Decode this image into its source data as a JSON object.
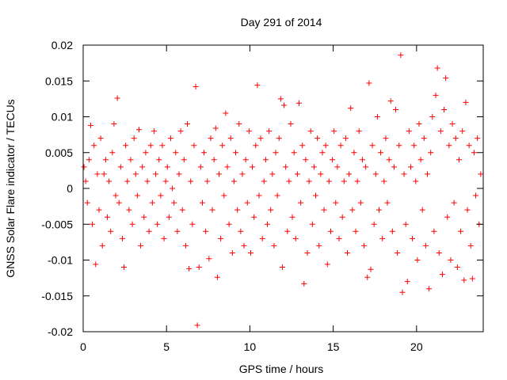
{
  "chart_data": {
    "type": "scatter",
    "title": "Day 291 of 2014",
    "xlabel": "GPS time / hours",
    "ylabel": "GNSS Solar Flare indicator / TECUs",
    "xlim": [
      0,
      24
    ],
    "ylim": [
      -0.02,
      0.02
    ],
    "xticks": [
      0,
      5,
      10,
      15,
      20
    ],
    "xtick_labels": [
      "0",
      "5",
      "10",
      "15",
      "20"
    ],
    "yticks": [
      -0.02,
      -0.015,
      -0.01,
      -0.005,
      0,
      0.005,
      0.01,
      0.015,
      0.02
    ],
    "ytick_labels": [
      "-0.02",
      "-0.015",
      "-0.01",
      "-0.005",
      "0",
      "0.005",
      "0.01",
      "0.015",
      "0.02"
    ],
    "grid": false,
    "legend": "none",
    "marker": "plus",
    "marker_color": "#ff0000",
    "series": [
      {
        "points": [
          [
            0.05,
            0.003
          ],
          [
            0.15,
            0.001
          ],
          [
            0.25,
            -0.002
          ],
          [
            0.35,
            0.004
          ],
          [
            0.45,
            0.0088
          ],
          [
            0.55,
            -0.005
          ],
          [
            0.65,
            0.006
          ],
          [
            0.75,
            -0.0106
          ],
          [
            0.85,
            0.002
          ],
          [
            0.95,
            -0.003
          ],
          [
            1.05,
            0.007
          ],
          [
            1.15,
            -0.008
          ],
          [
            1.25,
            0.002
          ],
          [
            1.35,
            0.004
          ],
          [
            1.45,
            -0.004
          ],
          [
            1.55,
            0.001
          ],
          [
            1.65,
            -0.006
          ],
          [
            1.75,
            0.005
          ],
          [
            1.85,
            0.009
          ],
          [
            1.95,
            -0.001
          ],
          [
            2.05,
            0.0126
          ],
          [
            2.15,
            -0.002
          ],
          [
            2.25,
            0.003
          ],
          [
            2.35,
            -0.007
          ],
          [
            2.45,
            -0.011
          ],
          [
            2.55,
            0.006
          ],
          [
            2.65,
            0.001
          ],
          [
            2.75,
            -0.003
          ],
          [
            2.85,
            0.004
          ],
          [
            2.95,
            -0.005
          ],
          [
            3.05,
            0.007
          ],
          [
            3.15,
            0.002
          ],
          [
            3.25,
            -0.001
          ],
          [
            3.35,
            0.0082
          ],
          [
            3.45,
            -0.008
          ],
          [
            3.55,
            0.003
          ],
          [
            3.65,
            -0.004
          ],
          [
            3.75,
            0.005
          ],
          [
            3.85,
            0.001
          ],
          [
            3.95,
            -0.006
          ],
          [
            4.05,
            0.006
          ],
          [
            4.15,
            -0.002
          ],
          [
            4.25,
            0.008
          ],
          [
            4.35,
            0.002
          ],
          [
            4.45,
            -0.005
          ],
          [
            4.55,
            0.004
          ],
          [
            4.65,
            -0.001
          ],
          [
            4.75,
            0.006
          ],
          [
            4.85,
            -0.007
          ],
          [
            4.95,
            0.001
          ],
          [
            5.05,
            0.003
          ],
          [
            5.15,
            -0.004
          ],
          [
            5.25,
            0.007
          ],
          [
            5.35,
            0.0
          ],
          [
            5.45,
            -0.002
          ],
          [
            5.55,
            0.005
          ],
          [
            5.65,
            -0.006
          ],
          [
            5.75,
            0.002
          ],
          [
            5.85,
            0.008
          ],
          [
            5.95,
            -0.003
          ],
          [
            6.05,
            0.004
          ],
          [
            6.15,
            -0.008
          ],
          [
            6.25,
            0.009
          ],
          [
            6.35,
            -0.0112
          ],
          [
            6.45,
            0.001
          ],
          [
            6.55,
            -0.005
          ],
          [
            6.65,
            0.006
          ],
          [
            6.75,
            0.0142
          ],
          [
            6.85,
            -0.0191
          ],
          [
            6.95,
            -0.011
          ],
          [
            7.05,
            0.003
          ],
          [
            7.15,
            -0.002
          ],
          [
            7.25,
            0.005
          ],
          [
            7.35,
            -0.006
          ],
          [
            7.45,
            0.001
          ],
          [
            7.55,
            -0.0098
          ],
          [
            7.65,
            0.007
          ],
          [
            7.75,
            -0.003
          ],
          [
            7.85,
            0.004
          ],
          [
            7.95,
            0.0084
          ],
          [
            8.05,
            -0.0124
          ],
          [
            8.15,
            0.002
          ],
          [
            8.25,
            -0.007
          ],
          [
            8.35,
            0.006
          ],
          [
            8.45,
            -0.001
          ],
          [
            8.55,
            0.0105
          ],
          [
            8.65,
            0.003
          ],
          [
            8.75,
            -0.005
          ],
          [
            8.85,
            0.007
          ],
          [
            8.95,
            -0.009
          ],
          [
            9.05,
            0.001
          ],
          [
            9.15,
            0.005
          ],
          [
            9.25,
            -0.003
          ],
          [
            9.35,
            0.009
          ],
          [
            9.45,
            -0.006
          ],
          [
            9.55,
            0.002
          ],
          [
            9.65,
            -0.008
          ],
          [
            9.75,
            0.004
          ],
          [
            9.85,
            -0.002
          ],
          [
            9.95,
            0.008
          ],
          [
            10.05,
            -0.009
          ],
          [
            10.15,
            0.003
          ],
          [
            10.25,
            -0.004
          ],
          [
            10.35,
            0.006
          ],
          [
            10.45,
            0.0144
          ],
          [
            10.55,
            -0.001
          ],
          [
            10.65,
            0.007
          ],
          [
            10.75,
            -0.007
          ],
          [
            10.85,
            0.001
          ],
          [
            10.95,
            0.004
          ],
          [
            11.05,
            -0.005
          ],
          [
            11.15,
            0.008
          ],
          [
            11.25,
            -0.003
          ],
          [
            11.35,
            0.002
          ],
          [
            11.45,
            -0.008
          ],
          [
            11.55,
            0.005
          ],
          [
            11.65,
            -0.001
          ],
          [
            11.75,
            0.007
          ],
          [
            11.85,
            0.0125
          ],
          [
            11.95,
            -0.011
          ],
          [
            12.05,
            0.0116
          ],
          [
            12.15,
            0.003
          ],
          [
            12.25,
            -0.006
          ],
          [
            12.35,
            0.001
          ],
          [
            12.45,
            0.009
          ],
          [
            12.55,
            -0.004
          ],
          [
            12.65,
            0.005
          ],
          [
            12.75,
            -0.007
          ],
          [
            12.85,
            0.002
          ],
          [
            12.95,
            0.0119
          ],
          [
            13.05,
            -0.002
          ],
          [
            13.15,
            0.006
          ],
          [
            13.25,
            -0.0133
          ],
          [
            13.35,
            0.004
          ],
          [
            13.45,
            -0.009
          ],
          [
            13.55,
            0.001
          ],
          [
            13.65,
            0.008
          ],
          [
            13.75,
            -0.005
          ],
          [
            13.85,
            0.003
          ],
          [
            13.95,
            -0.001
          ],
          [
            14.05,
            0.007
          ],
          [
            14.15,
            -0.008
          ],
          [
            14.25,
            0.002
          ],
          [
            14.35,
            0.005
          ],
          [
            14.45,
            -0.003
          ],
          [
            14.55,
            0.006
          ],
          [
            14.65,
            -0.0106
          ],
          [
            14.75,
            0.001
          ],
          [
            14.85,
            -0.006
          ],
          [
            14.95,
            0.004
          ],
          [
            15.05,
            0.008
          ],
          [
            15.15,
            -0.002
          ],
          [
            15.25,
            0.003
          ],
          [
            15.35,
            -0.007
          ],
          [
            15.45,
            0.006
          ],
          [
            15.55,
            -0.004
          ],
          [
            15.65,
            0.001
          ],
          [
            15.75,
            0.007
          ],
          [
            15.85,
            -0.009
          ],
          [
            15.95,
            0.002
          ],
          [
            16.05,
            0.0112
          ],
          [
            16.15,
            -0.003
          ],
          [
            16.25,
            0.005
          ],
          [
            16.35,
            -0.006
          ],
          [
            16.45,
            0.001
          ],
          [
            16.55,
            0.008
          ],
          [
            16.65,
            -0.002
          ],
          [
            16.75,
            0.004
          ],
          [
            16.85,
            -0.008
          ],
          [
            16.95,
            0.003
          ],
          [
            17.05,
            -0.0124
          ],
          [
            17.15,
            0.0147
          ],
          [
            17.25,
            -0.0113
          ],
          [
            17.35,
            0.006
          ],
          [
            17.45,
            -0.005
          ],
          [
            17.55,
            0.002
          ],
          [
            17.65,
            0.01
          ],
          [
            17.75,
            -0.003
          ],
          [
            17.85,
            0.005
          ],
          [
            17.95,
            -0.007
          ],
          [
            18.05,
            0.001
          ],
          [
            18.15,
            0.007
          ],
          [
            18.25,
            -0.002
          ],
          [
            18.35,
            0.004
          ],
          [
            18.45,
            0.0122
          ],
          [
            18.55,
            -0.006
          ],
          [
            18.65,
            0.003
          ],
          [
            18.75,
            0.011
          ],
          [
            18.85,
            -0.009
          ],
          [
            18.95,
            0.006
          ],
          [
            19.05,
            0.0186
          ],
          [
            19.15,
            -0.0145
          ],
          [
            19.25,
            0.002
          ],
          [
            19.35,
            -0.005
          ],
          [
            19.45,
            -0.013
          ],
          [
            19.55,
            0.008
          ],
          [
            19.65,
            0.003
          ],
          [
            19.75,
            -0.007
          ],
          [
            19.85,
            0.006
          ],
          [
            19.95,
            0.001
          ],
          [
            20.05,
            -0.01
          ],
          [
            20.15,
            0.009
          ],
          [
            20.25,
            0.004
          ],
          [
            20.35,
            -0.003
          ],
          [
            20.45,
            0.007
          ],
          [
            20.55,
            -0.008
          ],
          [
            20.65,
            0.002
          ],
          [
            20.75,
            -0.014
          ],
          [
            20.85,
            0.005
          ],
          [
            20.95,
            0.01
          ],
          [
            21.05,
            -0.006
          ],
          [
            21.15,
            0.013
          ],
          [
            21.25,
            0.0168
          ],
          [
            21.35,
            -0.009
          ],
          [
            21.45,
            0.008
          ],
          [
            21.55,
            -0.012
          ],
          [
            21.65,
            0.011
          ],
          [
            21.75,
            0.0154
          ],
          [
            21.85,
            -0.004
          ],
          [
            21.95,
            0.006
          ],
          [
            22.05,
            -0.01
          ],
          [
            22.15,
            0.009
          ],
          [
            22.25,
            -0.002
          ],
          [
            22.35,
            0.007
          ],
          [
            22.45,
            -0.011
          ],
          [
            22.55,
            0.004
          ],
          [
            22.65,
            -0.006
          ],
          [
            22.75,
            0.008
          ],
          [
            22.85,
            -0.0128
          ],
          [
            22.95,
            0.012
          ],
          [
            23.05,
            -0.003
          ],
          [
            23.15,
            0.006
          ],
          [
            23.25,
            -0.008
          ],
          [
            23.35,
            -0.0126
          ],
          [
            23.45,
            0.005
          ],
          [
            23.55,
            -0.001
          ],
          [
            23.65,
            0.007
          ],
          [
            23.75,
            -0.005
          ],
          [
            23.85,
            0.002
          ]
        ]
      }
    ]
  }
}
